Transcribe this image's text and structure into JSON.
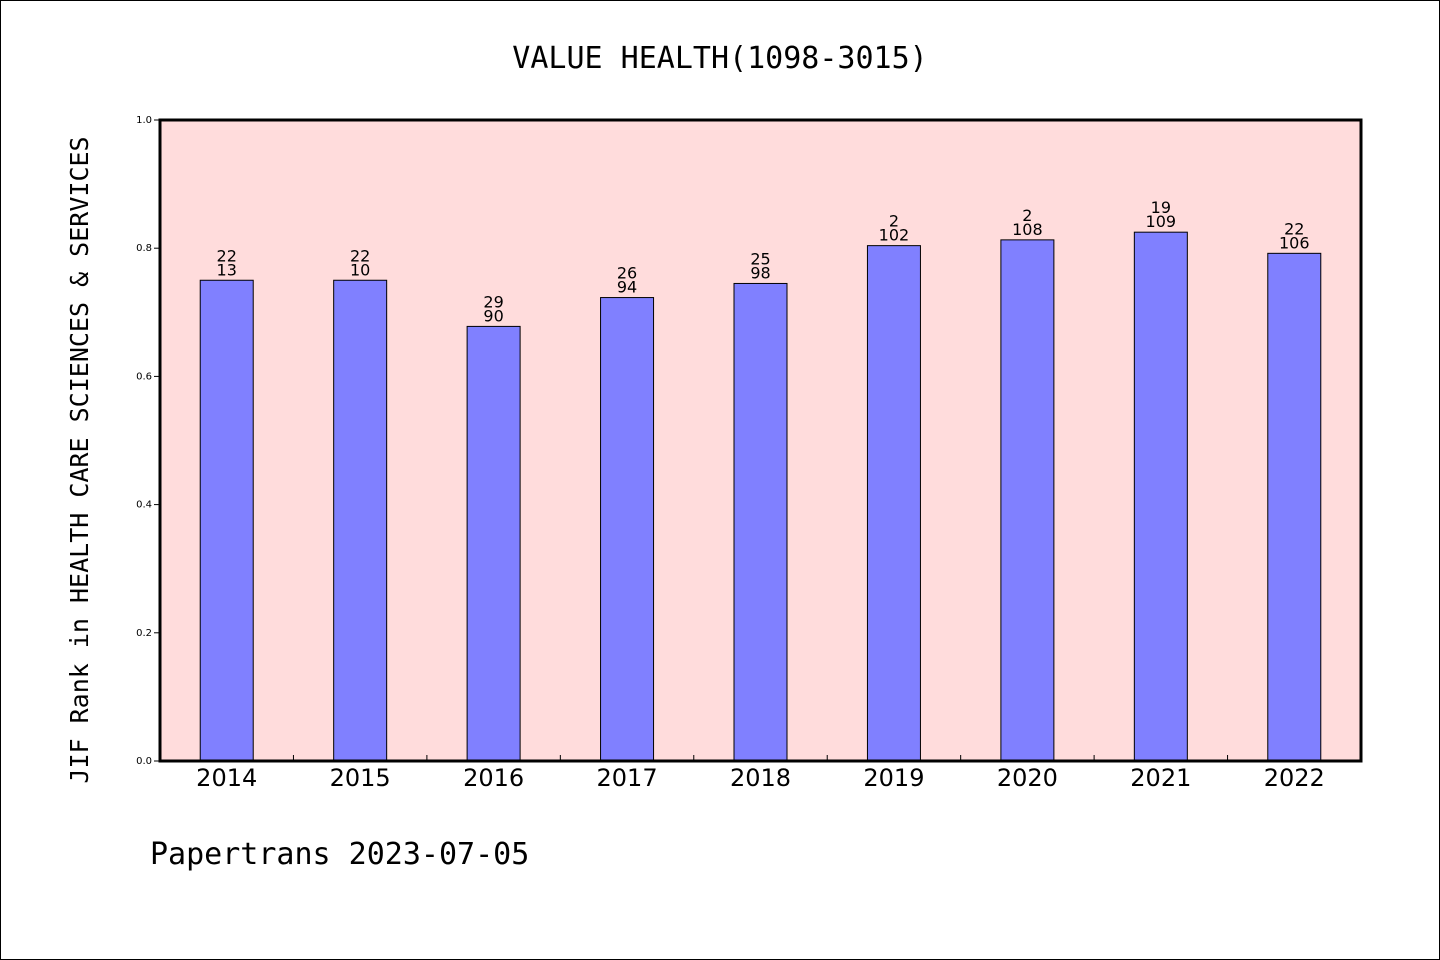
{
  "chart_data": {
    "type": "bar",
    "title": "VALUE HEALTH(1098-3015)",
    "xlabel": "",
    "ylabel": "JIF Rank in HEALTH CARE SCIENCES & SERVICES",
    "ylim": [
      0,
      1.0
    ],
    "yticks": [
      "0.0",
      "0.2",
      "0.4",
      "0.6",
      "0.8",
      "1.0"
    ],
    "categories": [
      "2014",
      "2015",
      "2016",
      "2017",
      "2018",
      "2019",
      "2020",
      "2021",
      "2022"
    ],
    "values": [
      0.75,
      0.75,
      0.678,
      0.723,
      0.745,
      0.804,
      0.813,
      0.825,
      0.792
    ],
    "labels_top": [
      "22",
      "22",
      "29",
      "26",
      "25",
      "2",
      "2",
      "19",
      "22"
    ],
    "labels_bottom": [
      "13",
      "10",
      "90",
      "94",
      "98",
      "102",
      "108",
      "109",
      "106"
    ],
    "grid": false,
    "colors": {
      "bar_fill": "#8080ff",
      "bar_stroke": "#000000",
      "plot_background": "#ffdcdc"
    }
  },
  "footer": {
    "text": "Papertrans 2023-07-05"
  }
}
